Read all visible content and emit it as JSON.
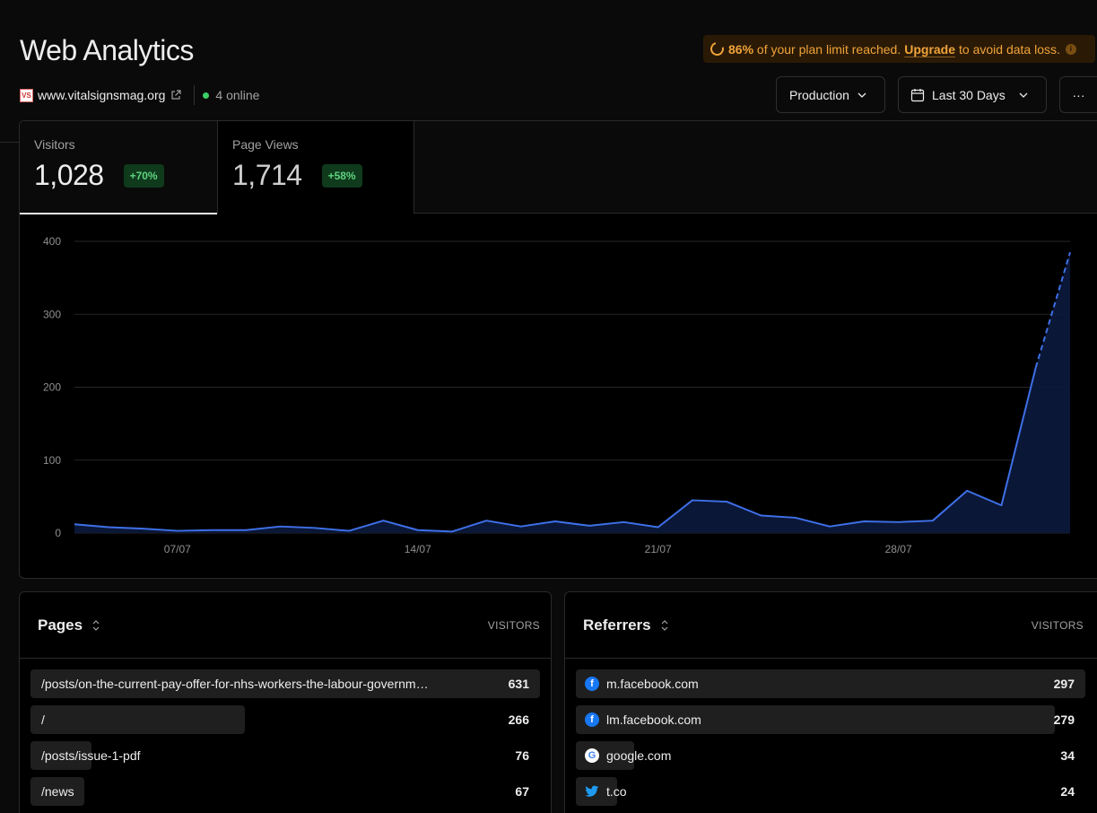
{
  "header": {
    "title": "Web Analytics",
    "domain": "www.vitalsignsmag.org",
    "favicon_text": "VS",
    "online": "4 online"
  },
  "banner": {
    "percent": "86%",
    "text": "of your plan limit reached.",
    "upgrade": "Upgrade",
    "suffix": "to avoid data loss.",
    "info": "i"
  },
  "controls": {
    "environment": "Production",
    "range": "Last 30 Days",
    "more": "···"
  },
  "tabs": [
    {
      "label": "Visitors",
      "value": "1,028",
      "change": "+70%"
    },
    {
      "label": "Page Views",
      "value": "1,714",
      "change": "+58%"
    }
  ],
  "chart_data": {
    "type": "area",
    "series": [
      {
        "values": [
          12,
          8,
          6,
          3,
          4,
          4,
          9,
          7,
          3,
          17,
          4,
          2,
          17,
          9,
          16,
          10,
          15,
          8,
          45,
          43,
          24,
          21,
          9,
          16,
          15,
          17,
          58,
          38,
          227,
          385
        ]
      }
    ],
    "projected_from_index": 28,
    "x_ticks": [
      {
        "label": "07/07",
        "index": 3
      },
      {
        "label": "14/07",
        "index": 10
      },
      {
        "label": "21/07",
        "index": 17
      },
      {
        "label": "28/07",
        "index": 24
      }
    ],
    "y_ticks": [
      "0",
      "100",
      "200",
      "300",
      "400"
    ],
    "ylim": [
      0,
      400
    ],
    "grid": true,
    "color": "#3e70e8"
  },
  "pages": {
    "title": "Pages",
    "column": "VISITORS",
    "items": [
      {
        "label": "/posts/on-the-current-pay-offer-for-nhs-workers-the-labour-governm…",
        "count": "631",
        "fraction": 1.0
      },
      {
        "label": "/",
        "count": "266",
        "fraction": 0.42
      },
      {
        "label": "/posts/issue-1-pdf",
        "count": "76",
        "fraction": 0.12
      },
      {
        "label": "/news",
        "count": "67",
        "fraction": 0.106
      }
    ]
  },
  "referrers": {
    "title": "Referrers",
    "column": "VISITORS",
    "items": [
      {
        "label": "m.facebook.com",
        "count": "297",
        "fraction": 1.0,
        "icon": "facebook-icon"
      },
      {
        "label": "lm.facebook.com",
        "count": "279",
        "fraction": 0.94,
        "icon": "facebook-icon"
      },
      {
        "label": "google.com",
        "count": "34",
        "fraction": 0.115,
        "icon": "google-icon"
      },
      {
        "label": "t.co",
        "count": "24",
        "fraction": 0.081,
        "icon": "twitter-icon"
      }
    ]
  }
}
